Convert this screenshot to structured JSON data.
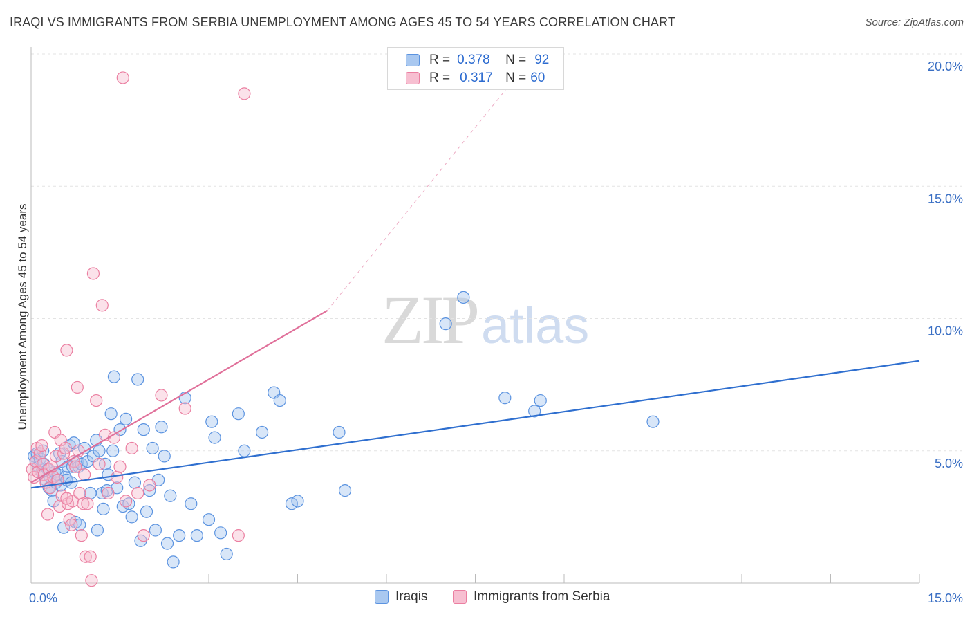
{
  "title": "IRAQI VS IMMIGRANTS FROM SERBIA UNEMPLOYMENT AMONG AGES 45 TO 54 YEARS CORRELATION CHART",
  "source": "Source: ZipAtlas.com",
  "watermark": {
    "zip": "ZIP",
    "atlas": "atlas"
  },
  "colors": {
    "blue_fill": "#a9c8f0",
    "blue_stroke": "#5b93e0",
    "blue_line": "#2f6fcf",
    "pink_fill": "#f7bfd1",
    "pink_stroke": "#eb7fa1",
    "pink_line": "#e0709a",
    "grid": "#e3e3e3",
    "tick_text": "#3a6fc4"
  },
  "legend_top": [
    {
      "r_label": "R =",
      "r_value": "0.378",
      "n_label": "N =",
      "n_value": "92"
    },
    {
      "r_label": "R =",
      "r_value": "0.317",
      "n_label": "N =",
      "n_value": "60"
    }
  ],
  "chart_data": {
    "type": "scatter",
    "title": "IRAQI VS IMMIGRANTS FROM SERBIA UNEMPLOYMENT AMONG AGES 45 TO 54 YEARS CORRELATION CHART",
    "xlabel": "",
    "ylabel": "Unemployment Among Ages 45 to 54 years",
    "xlim": [
      0,
      15
    ],
    "ylim": [
      0,
      20
    ],
    "x_ticks": [
      0,
      1.5,
      3,
      4.5,
      6,
      7.5,
      9,
      10.5,
      12,
      13.5,
      15
    ],
    "x_tick_labels": [
      {
        "value": 0,
        "label": "0.0%"
      },
      {
        "value": 15,
        "label": "15.0%"
      }
    ],
    "y_tick_labels": [
      {
        "value": 5,
        "label": "5.0%"
      },
      {
        "value": 10,
        "label": "10.0%"
      },
      {
        "value": 15,
        "label": "15.0%"
      },
      {
        "value": 20,
        "label": "20.0%"
      }
    ],
    "grid": true,
    "legend_position": "bottom-center",
    "series": [
      {
        "name": "Iraqis",
        "color": "blue",
        "R": 0.378,
        "N": 92,
        "trend": {
          "x0": 0,
          "y0": 3.6,
          "x1": 15,
          "y1": 8.4,
          "dashed_to": null
        },
        "points": [
          [
            0.05,
            4.8
          ],
          [
            0.08,
            4.6
          ],
          [
            0.1,
            4.9
          ],
          [
            0.12,
            4.4
          ],
          [
            0.15,
            4.7
          ],
          [
            0.18,
            4.2
          ],
          [
            0.2,
            5.0
          ],
          [
            0.22,
            4.5
          ],
          [
            0.25,
            3.9
          ],
          [
            0.28,
            4.3
          ],
          [
            0.3,
            3.6
          ],
          [
            0.32,
            4.0
          ],
          [
            0.35,
            3.5
          ],
          [
            0.38,
            3.1
          ],
          [
            0.4,
            4.2
          ],
          [
            0.42,
            3.8
          ],
          [
            0.45,
            4.1
          ],
          [
            0.48,
            4.9
          ],
          [
            0.5,
            3.7
          ],
          [
            0.52,
            4.6
          ],
          [
            0.55,
            2.1
          ],
          [
            0.58,
            4.0
          ],
          [
            0.6,
            3.9
          ],
          [
            0.62,
            4.4
          ],
          [
            0.65,
            5.2
          ],
          [
            0.68,
            3.8
          ],
          [
            0.7,
            4.4
          ],
          [
            0.72,
            5.3
          ],
          [
            0.75,
            2.3
          ],
          [
            0.78,
            4.6
          ],
          [
            0.8,
            4.4
          ],
          [
            0.82,
            2.2
          ],
          [
            0.85,
            4.5
          ],
          [
            0.9,
            5.1
          ],
          [
            0.95,
            4.6
          ],
          [
            1.0,
            3.4
          ],
          [
            1.05,
            4.8
          ],
          [
            1.1,
            5.4
          ],
          [
            1.12,
            2.0
          ],
          [
            1.15,
            5.0
          ],
          [
            1.2,
            3.4
          ],
          [
            1.22,
            2.8
          ],
          [
            1.25,
            4.5
          ],
          [
            1.28,
            3.5
          ],
          [
            1.3,
            4.1
          ],
          [
            1.35,
            6.4
          ],
          [
            1.38,
            5.0
          ],
          [
            1.4,
            7.8
          ],
          [
            1.45,
            3.6
          ],
          [
            1.5,
            5.8
          ],
          [
            1.55,
            2.9
          ],
          [
            1.6,
            6.2
          ],
          [
            1.65,
            3.0
          ],
          [
            1.7,
            2.5
          ],
          [
            1.75,
            3.8
          ],
          [
            1.8,
            7.7
          ],
          [
            1.85,
            1.6
          ],
          [
            1.9,
            5.8
          ],
          [
            1.95,
            2.7
          ],
          [
            2.0,
            3.5
          ],
          [
            2.05,
            5.1
          ],
          [
            2.1,
            2.0
          ],
          [
            2.15,
            3.9
          ],
          [
            2.2,
            5.9
          ],
          [
            2.25,
            4.8
          ],
          [
            2.3,
            1.5
          ],
          [
            2.35,
            3.3
          ],
          [
            2.4,
            0.8
          ],
          [
            2.5,
            1.8
          ],
          [
            2.6,
            7.0
          ],
          [
            2.7,
            3.0
          ],
          [
            2.8,
            1.8
          ],
          [
            3.0,
            2.4
          ],
          [
            3.05,
            6.1
          ],
          [
            3.1,
            5.5
          ],
          [
            3.2,
            1.9
          ],
          [
            3.3,
            1.1
          ],
          [
            3.5,
            6.4
          ],
          [
            3.6,
            5.0
          ],
          [
            3.9,
            5.7
          ],
          [
            4.1,
            7.2
          ],
          [
            4.2,
            6.9
          ],
          [
            4.4,
            3.0
          ],
          [
            4.5,
            3.1
          ],
          [
            5.2,
            5.7
          ],
          [
            5.3,
            3.5
          ],
          [
            7.0,
            9.8
          ],
          [
            7.3,
            10.8
          ],
          [
            8.0,
            7.0
          ],
          [
            8.5,
            6.5
          ],
          [
            8.6,
            6.9
          ],
          [
            10.5,
            6.1
          ]
        ]
      },
      {
        "name": "Immigrants from Serbia",
        "color": "pink",
        "R": 0.317,
        "N": 60,
        "trend": {
          "x0": 0,
          "y0": 3.8,
          "x1": 5.0,
          "y1": 10.3,
          "dashed_to": {
            "x": 8.5,
            "y": 20.0
          }
        },
        "points": [
          [
            0.02,
            4.3
          ],
          [
            0.05,
            4.0
          ],
          [
            0.08,
            4.6
          ],
          [
            0.1,
            5.1
          ],
          [
            0.12,
            4.2
          ],
          [
            0.15,
            4.9
          ],
          [
            0.18,
            5.2
          ],
          [
            0.2,
            4.5
          ],
          [
            0.22,
            4.1
          ],
          [
            0.25,
            3.8
          ],
          [
            0.28,
            2.6
          ],
          [
            0.3,
            4.3
          ],
          [
            0.32,
            3.6
          ],
          [
            0.35,
            4.4
          ],
          [
            0.38,
            4.0
          ],
          [
            0.4,
            5.7
          ],
          [
            0.42,
            4.8
          ],
          [
            0.45,
            3.9
          ],
          [
            0.48,
            2.9
          ],
          [
            0.5,
            5.4
          ],
          [
            0.52,
            3.3
          ],
          [
            0.55,
            4.9
          ],
          [
            0.58,
            5.1
          ],
          [
            0.6,
            8.8
          ],
          [
            0.62,
            3.0
          ],
          [
            0.65,
            2.4
          ],
          [
            0.68,
            2.2
          ],
          [
            0.7,
            3.1
          ],
          [
            0.72,
            4.6
          ],
          [
            0.75,
            4.4
          ],
          [
            0.78,
            7.4
          ],
          [
            0.8,
            5.0
          ],
          [
            0.82,
            3.4
          ],
          [
            0.85,
            1.8
          ],
          [
            0.88,
            3.0
          ],
          [
            0.9,
            4.1
          ],
          [
            0.92,
            1.0
          ],
          [
            0.95,
            3.0
          ],
          [
            1.0,
            1.0
          ],
          [
            1.02,
            0.1
          ],
          [
            1.05,
            11.7
          ],
          [
            1.1,
            6.9
          ],
          [
            1.15,
            4.5
          ],
          [
            1.2,
            10.5
          ],
          [
            1.25,
            5.6
          ],
          [
            1.3,
            3.4
          ],
          [
            1.4,
            5.5
          ],
          [
            1.45,
            4.0
          ],
          [
            1.5,
            4.4
          ],
          [
            1.55,
            19.1
          ],
          [
            1.6,
            3.1
          ],
          [
            1.7,
            5.1
          ],
          [
            1.8,
            3.4
          ],
          [
            1.9,
            1.8
          ],
          [
            2.0,
            3.7
          ],
          [
            2.2,
            7.1
          ],
          [
            2.6,
            6.6
          ],
          [
            3.5,
            1.8
          ],
          [
            3.6,
            18.5
          ],
          [
            0.6,
            3.2
          ]
        ]
      }
    ]
  },
  "legend_bottom": [
    {
      "label": "Iraqis"
    },
    {
      "label": "Immigrants from Serbia"
    }
  ]
}
